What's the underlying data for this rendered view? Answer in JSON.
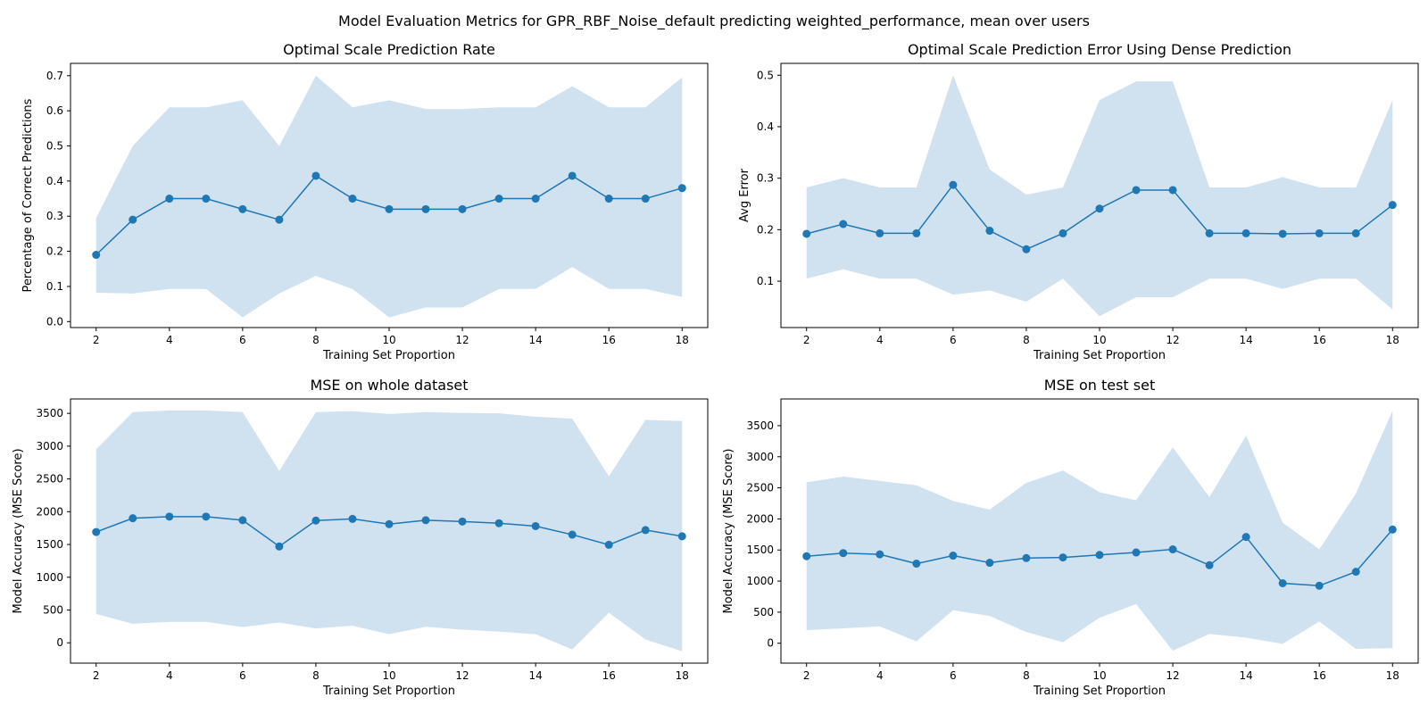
{
  "suptitle": "Model Evaluation Metrics for GPR_RBF_Noise_default predicting weighted_performance, mean over users",
  "colors": {
    "line": "#1f77b4",
    "band": "#d0e2f0"
  },
  "chart_data": [
    {
      "type": "line",
      "title": "Optimal Scale Prediction Rate",
      "xlabel": "Training Set Proportion",
      "ylabel": "Percentage of Correct Predictions",
      "x": [
        2,
        3,
        4,
        5,
        6,
        7,
        8,
        9,
        10,
        11,
        12,
        13,
        14,
        15,
        16,
        17,
        18
      ],
      "y": [
        0.19,
        0.29,
        0.35,
        0.35,
        0.32,
        0.29,
        0.415,
        0.35,
        0.32,
        0.32,
        0.32,
        0.35,
        0.35,
        0.415,
        0.35,
        0.35,
        0.38
      ],
      "upper": [
        0.295,
        0.5,
        0.61,
        0.61,
        0.63,
        0.5,
        0.7,
        0.61,
        0.63,
        0.605,
        0.605,
        0.61,
        0.61,
        0.67,
        0.61,
        0.61,
        0.695
      ],
      "lower": [
        0.082,
        0.08,
        0.093,
        0.093,
        0.012,
        0.08,
        0.13,
        0.093,
        0.012,
        0.04,
        0.04,
        0.093,
        0.093,
        0.155,
        0.093,
        0.093,
        0.07
      ],
      "xlim": [
        1.3,
        18.7
      ],
      "ylim": [
        -0.017,
        0.735
      ],
      "xticks": [
        "2",
        "4",
        "6",
        "8",
        "10",
        "12",
        "14",
        "16",
        "18"
      ],
      "yticks": [
        "0.0",
        "0.1",
        "0.2",
        "0.3",
        "0.4",
        "0.5",
        "0.6",
        "0.7"
      ]
    },
    {
      "type": "line",
      "title": "Optimal Scale Prediction Error Using Dense Prediction",
      "xlabel": "Training Set Proportion",
      "ylabel": "Avg Error",
      "x": [
        2,
        3,
        4,
        5,
        6,
        7,
        8,
        9,
        10,
        11,
        12,
        13,
        14,
        15,
        16,
        17,
        18
      ],
      "y": [
        0.192,
        0.211,
        0.193,
        0.193,
        0.287,
        0.198,
        0.162,
        0.193,
        0.241,
        0.277,
        0.277,
        0.193,
        0.193,
        0.192,
        0.193,
        0.193,
        0.248
      ],
      "upper": [
        0.282,
        0.3,
        0.282,
        0.282,
        0.5,
        0.317,
        0.268,
        0.282,
        0.452,
        0.488,
        0.488,
        0.282,
        0.282,
        0.302,
        0.282,
        0.282,
        0.452
      ],
      "lower": [
        0.105,
        0.123,
        0.105,
        0.105,
        0.074,
        0.082,
        0.06,
        0.105,
        0.032,
        0.069,
        0.069,
        0.105,
        0.105,
        0.085,
        0.105,
        0.105,
        0.045
      ],
      "xlim": [
        1.3,
        18.7
      ],
      "ylim": [
        0.01,
        0.523
      ],
      "xticks": [
        "2",
        "4",
        "6",
        "8",
        "10",
        "12",
        "14",
        "16",
        "18"
      ],
      "yticks": [
        "0.1",
        "0.2",
        "0.3",
        "0.4",
        "0.5"
      ]
    },
    {
      "type": "line",
      "title": "MSE on whole dataset",
      "xlabel": "Training Set Proportion",
      "ylabel": "Model Accuracy (MSE Score)",
      "x": [
        2,
        3,
        4,
        5,
        6,
        7,
        8,
        9,
        10,
        11,
        12,
        13,
        14,
        15,
        16,
        17,
        18
      ],
      "y": [
        1690,
        1900,
        1925,
        1925,
        1870,
        1470,
        1865,
        1890,
        1810,
        1870,
        1850,
        1825,
        1780,
        1650,
        1495,
        1720,
        1625
      ],
      "upper": [
        2950,
        3520,
        3545,
        3545,
        3520,
        2620,
        3520,
        3535,
        3490,
        3520,
        3505,
        3500,
        3450,
        3420,
        2540,
        3400,
        3385
      ],
      "lower": [
        440,
        290,
        320,
        320,
        240,
        310,
        220,
        260,
        130,
        245,
        200,
        170,
        130,
        -100,
        460,
        50,
        -130
      ],
      "xlim": [
        1.3,
        18.7
      ],
      "ylim": [
        -310,
        3720
      ],
      "xticks": [
        "2",
        "4",
        "6",
        "8",
        "10",
        "12",
        "14",
        "16",
        "18"
      ],
      "yticks": [
        "0",
        "500",
        "1000",
        "1500",
        "2000",
        "2500",
        "3000",
        "3500"
      ]
    },
    {
      "type": "line",
      "title": "MSE on test set",
      "xlabel": "Training Set Proportion",
      "ylabel": "Model Accuracy (MSE Score)",
      "x": [
        2,
        3,
        4,
        5,
        6,
        7,
        8,
        9,
        10,
        11,
        12,
        13,
        14,
        15,
        16,
        17,
        18
      ],
      "y": [
        1400,
        1450,
        1430,
        1280,
        1410,
        1295,
        1370,
        1380,
        1420,
        1460,
        1510,
        1255,
        1710,
        965,
        925,
        1150,
        1830
      ],
      "upper": [
        2590,
        2680,
        2610,
        2540,
        2290,
        2150,
        2580,
        2780,
        2430,
        2300,
        3150,
        2350,
        3340,
        1940,
        1510,
        2410,
        3740
      ],
      "lower": [
        210,
        240,
        270,
        30,
        530,
        440,
        180,
        15,
        410,
        630,
        -120,
        150,
        90,
        -10,
        350,
        -90,
        -80
      ],
      "xlim": [
        1.3,
        18.7
      ],
      "ylim": [
        -320,
        3930
      ],
      "xticks": [
        "2",
        "4",
        "6",
        "8",
        "10",
        "12",
        "14",
        "16",
        "18"
      ],
      "yticks": [
        "0",
        "500",
        "1000",
        "1500",
        "2000",
        "2500",
        "3000",
        "3500"
      ]
    }
  ]
}
